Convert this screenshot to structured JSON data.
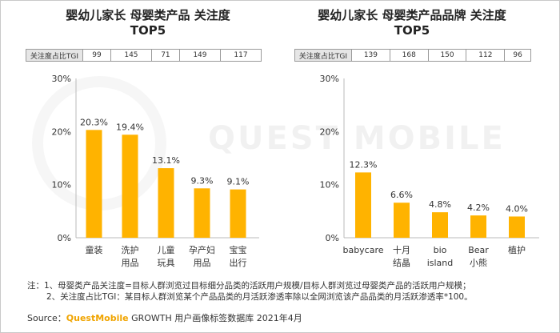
{
  "left": {
    "title_line1": "婴幼儿家长 母婴类产品 关注度",
    "title_line2": "TOP5",
    "tgi_label": "关注度占比TGI",
    "tgi_values": [
      "99",
      "145",
      "71",
      "149",
      "117"
    ]
  },
  "right": {
    "title_line1": "婴幼儿家长 母婴类产品品牌 关注度",
    "title_line2": "TOP5",
    "tgi_label": "关注度占比TGI",
    "tgi_values": [
      "139",
      "168",
      "150",
      "112",
      "96"
    ]
  },
  "chart_data": [
    {
      "type": "bar",
      "title": "婴幼儿家长 母婴类产品 关注度 TOP5",
      "categories": [
        [
          "童装"
        ],
        [
          "洗护",
          "用品"
        ],
        [
          "儿童",
          "玩具"
        ],
        [
          "孕产妇",
          "用品"
        ],
        [
          "宝宝",
          "出行"
        ]
      ],
      "values": [
        20.3,
        19.4,
        13.1,
        9.3,
        9.1
      ],
      "value_labels": [
        "20.3%",
        "19.4%",
        "13.1%",
        "9.3%",
        "9.1%"
      ],
      "ylim": [
        0,
        30
      ],
      "yticks": [
        "0%",
        "10%",
        "20%",
        "30%"
      ],
      "grid": false,
      "bar_color": "#ffb300"
    },
    {
      "type": "bar",
      "title": "婴幼儿家长 母婴类产品品牌 关注度 TOP5",
      "categories": [
        [
          "babycare"
        ],
        [
          "十月",
          "结晶"
        ],
        [
          "bio",
          "island"
        ],
        [
          "Bear",
          "小熊"
        ],
        [
          "植护"
        ]
      ],
      "values": [
        12.3,
        6.6,
        4.8,
        4.2,
        4.0
      ],
      "value_labels": [
        "12.3%",
        "6.6%",
        "4.8%",
        "4.2%",
        "4.0%"
      ],
      "ylim": [
        0,
        30
      ],
      "yticks": [
        "0%",
        "10%",
        "20%",
        "30%"
      ],
      "grid": false,
      "bar_color": "#ffb300"
    }
  ],
  "notes": [
    "注：1、母婴类产品关注度=目标人群浏览过目标细分品类的活跃用户规模/目标人群浏览过母婴类产品的活跃用户规模；",
    "2、关注度占比TGI：某目标人群浏览某个产品品类的月活跃渗透率除以全网浏览该产品品类的月活跃渗透率*100。"
  ],
  "source": {
    "prefix": "Source：",
    "brand": "QuestMobile",
    "rest": " GROWTH 用户画像标签数据库 2021年4月"
  },
  "watermark": "QUEST MOBILE"
}
